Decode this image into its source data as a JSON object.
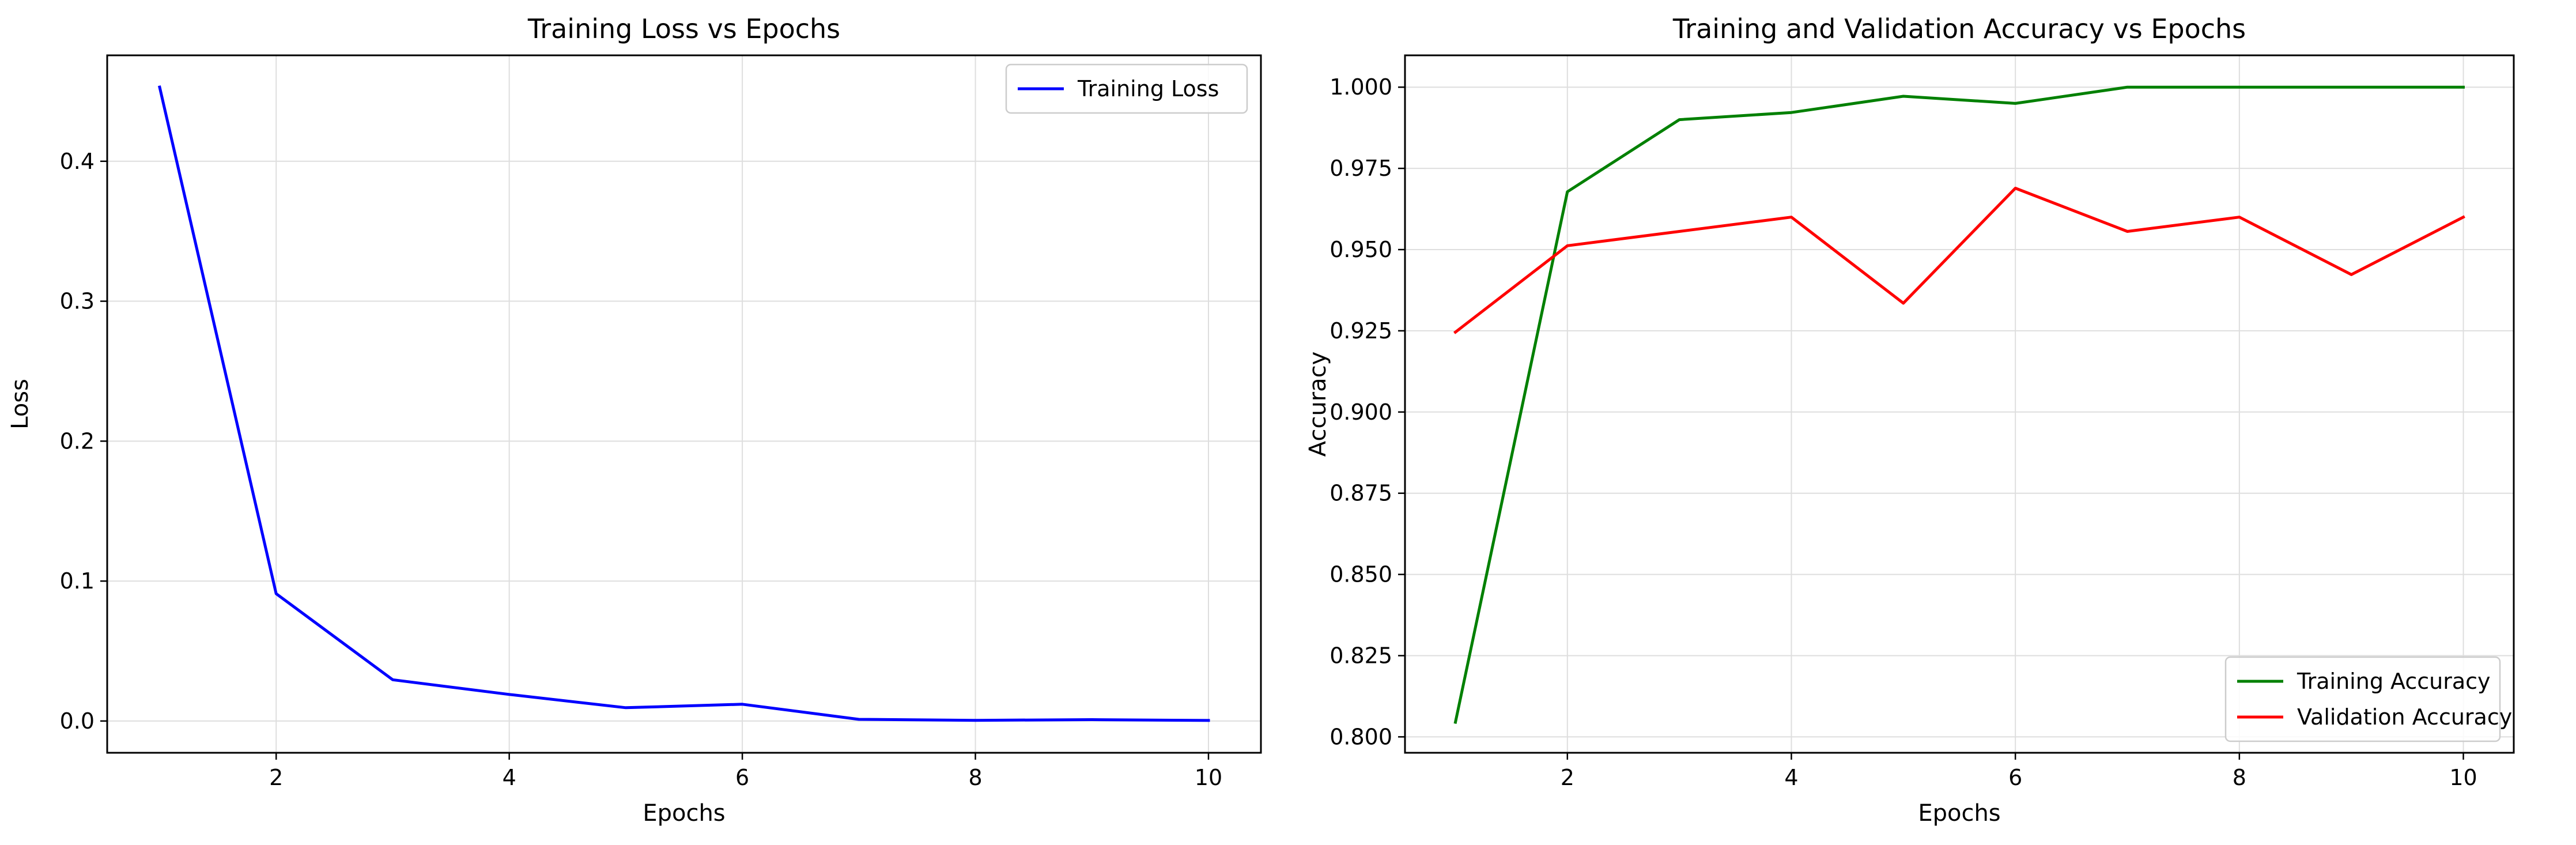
{
  "chart_data": [
    {
      "type": "line",
      "title": "Training Loss vs Epochs",
      "xlabel": "Epochs",
      "ylabel": "Loss",
      "xlim": [
        0.55,
        10.45
      ],
      "ylim": [
        -0.0227,
        0.4757
      ],
      "x_ticks": [
        2,
        4,
        6,
        8,
        10
      ],
      "y_ticks": [
        0.0,
        0.1,
        0.2,
        0.3,
        0.4
      ],
      "y_tick_labels": [
        "0.0",
        "0.1",
        "0.2",
        "0.3",
        "0.4"
      ],
      "grid": true,
      "legend_position": "upper right",
      "x": [
        1,
        2,
        3,
        4,
        5,
        6,
        7,
        8,
        9,
        10
      ],
      "series": [
        {
          "name": "Training Loss",
          "color": "#0000ff",
          "values": [
            0.453,
            0.091,
            0.0295,
            0.019,
            0.0095,
            0.012,
            0.0012,
            0.0005,
            0.001,
            0.0004
          ]
        }
      ]
    },
    {
      "type": "line",
      "title": "Training and Validation Accuracy vs Epochs",
      "xlabel": "Epochs",
      "ylabel": "Accuracy",
      "xlim": [
        0.55,
        10.45
      ],
      "ylim": [
        0.7951,
        1.0098
      ],
      "x_ticks": [
        2,
        4,
        6,
        8,
        10
      ],
      "y_ticks": [
        0.8,
        0.825,
        0.85,
        0.875,
        0.9,
        0.925,
        0.95,
        0.975,
        1.0
      ],
      "y_tick_labels": [
        "0.800",
        "0.825",
        "0.850",
        "0.875",
        "0.900",
        "0.925",
        "0.950",
        "0.975",
        "1.000"
      ],
      "grid": true,
      "legend_position": "lower right",
      "x": [
        1,
        2,
        3,
        4,
        5,
        6,
        7,
        8,
        9,
        10
      ],
      "series": [
        {
          "name": "Training Accuracy",
          "color": "#008000",
          "values": [
            0.8045,
            0.9678,
            0.99,
            0.9922,
            0.9972,
            0.995,
            1.0,
            1.0,
            1.0,
            1.0
          ]
        },
        {
          "name": "Validation Accuracy",
          "color": "#ff0000",
          "values": [
            0.9246,
            0.9512,
            0.9556,
            0.96,
            0.9335,
            0.9689,
            0.9556,
            0.96,
            0.9423,
            0.96
          ]
        }
      ]
    }
  ]
}
